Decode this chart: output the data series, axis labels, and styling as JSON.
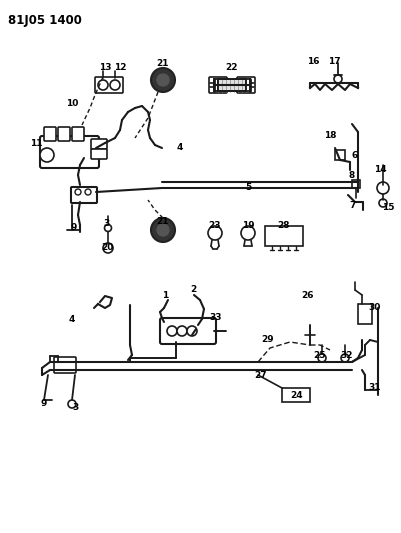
{
  "title": "81J05 1400",
  "bg_color": "#ffffff",
  "line_color": "#1a1a1a",
  "text_color": "#000000",
  "fig_width": 4.02,
  "fig_height": 5.33,
  "dpi": 100
}
